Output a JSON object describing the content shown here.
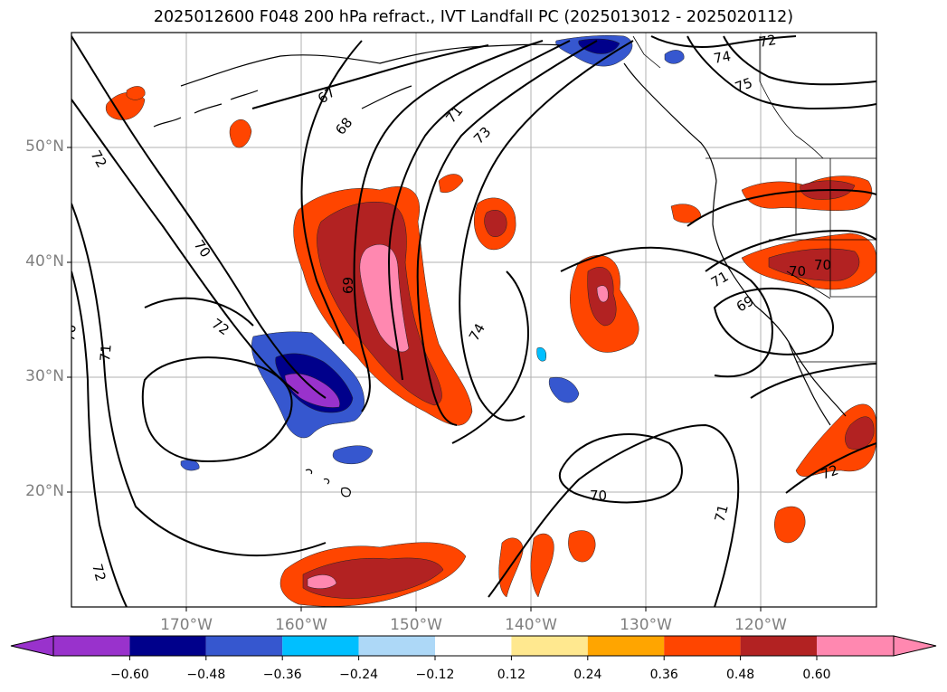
{
  "title": "2025012600 F048 200 hPa refract., IVT Landfall PC (2025013012 - 2025020112)",
  "lat_labels": [
    "50°N",
    "40°N",
    "30°N",
    "20°N"
  ],
  "lon_labels": [
    "170°W",
    "160°W",
    "150°W",
    "140°W",
    "130°W",
    "120°W"
  ],
  "contour_labels": [
    "67",
    "68",
    "71",
    "73",
    "72",
    "72",
    "70",
    "69",
    "74",
    "72",
    "70",
    "71",
    "70",
    "70",
    "71",
    "74",
    "75",
    "72",
    "71",
    "69",
    "70",
    "72"
  ],
  "colorbar": {
    "colors": [
      "#9932cc",
      "#00008b",
      "#3657cf",
      "#00bfff",
      "#add8f7",
      "#ffffff",
      "#ffe88f",
      "#ffa500",
      "#ff4500",
      "#b22222",
      "#ff88b0"
    ],
    "tick_labels": [
      "−0.60",
      "−0.48",
      "−0.36",
      "−0.24",
      "−0.12",
      "0.12",
      "0.24",
      "0.36",
      "0.48",
      "0.60"
    ]
  }
}
